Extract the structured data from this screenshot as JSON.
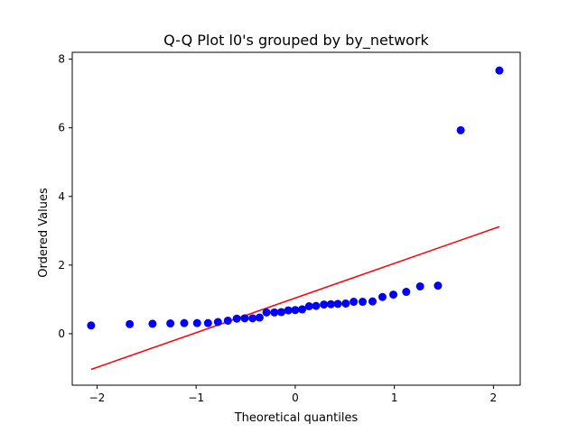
{
  "chart_data": {
    "type": "scatter",
    "title": "Q-Q Plot l0's grouped by by_network",
    "xlabel": "Theoretical quantiles",
    "ylabel": "Ordered Values",
    "xlim": [
      -2.25,
      2.27
    ],
    "ylim": [
      -1.5,
      8.2
    ],
    "xticks": [
      -2,
      -1,
      0,
      1,
      2
    ],
    "xtick_labels": [
      "−2",
      "−1",
      "0",
      "1",
      "2"
    ],
    "yticks": [
      0,
      2,
      4,
      6,
      8
    ],
    "ytick_labels": [
      "0",
      "2",
      "4",
      "6",
      "8"
    ],
    "grid": false,
    "series": [
      {
        "kind": "points",
        "color": "#0000ff",
        "x": [
          -2.06,
          -1.67,
          -1.44,
          -1.26,
          -1.12,
          -0.99,
          -0.88,
          -0.78,
          -0.68,
          -0.59,
          -0.51,
          -0.43,
          -0.36,
          -0.29,
          -0.21,
          -0.14,
          -0.07,
          0.0,
          0.07,
          0.14,
          0.21,
          0.29,
          0.36,
          0.43,
          0.51,
          0.59,
          0.68,
          0.78,
          0.88,
          0.99,
          1.12,
          1.26,
          1.44,
          1.67,
          2.06
        ],
        "y": [
          0.24,
          0.28,
          0.29,
          0.3,
          0.31,
          0.31,
          0.31,
          0.34,
          0.38,
          0.44,
          0.45,
          0.45,
          0.47,
          0.62,
          0.62,
          0.63,
          0.68,
          0.69,
          0.71,
          0.8,
          0.81,
          0.85,
          0.86,
          0.87,
          0.88,
          0.93,
          0.93,
          0.94,
          1.07,
          1.14,
          1.22,
          1.38,
          1.4,
          5.93,
          7.67
        ]
      },
      {
        "kind": "line",
        "color": "#ff0000",
        "x": [
          -2.06,
          2.06
        ],
        "y": [
          -1.04,
          3.12
        ]
      }
    ]
  }
}
